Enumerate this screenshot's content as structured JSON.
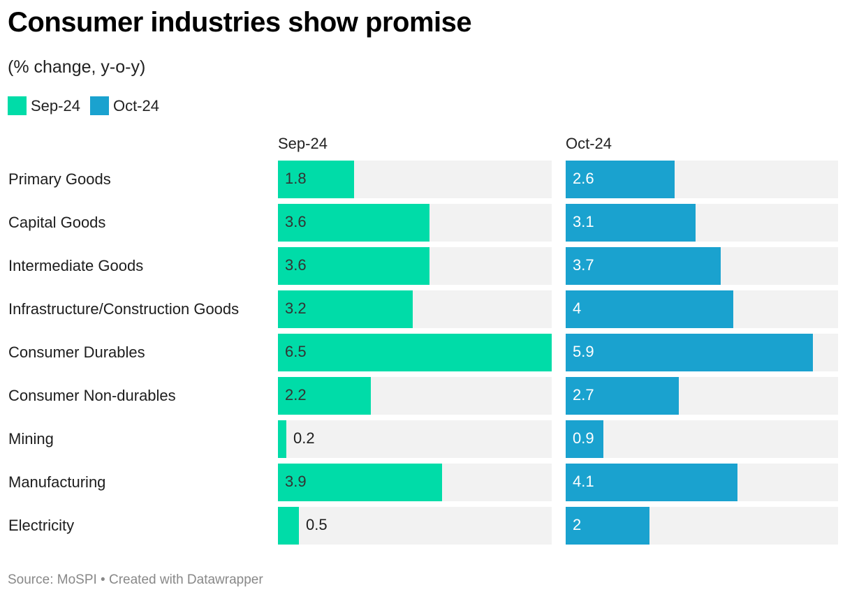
{
  "header": {
    "title": "Consumer industries show promise",
    "subtitle": "(% change, y-o-y)"
  },
  "legend": [
    {
      "label": "Sep-24",
      "color": "#00dca8"
    },
    {
      "label": "Oct-24",
      "color": "#1aa2cf"
    }
  ],
  "footer": {
    "source": "Source: MoSPI • Created with Datawrapper"
  },
  "chart_data": {
    "type": "bar",
    "orientation": "horizontal",
    "layout": "split-bars",
    "title": "Consumer industries show promise",
    "subtitle": "(% change, y-o-y)",
    "xlabel": "",
    "ylabel": "",
    "xlim": [
      0,
      6.5
    ],
    "grid": false,
    "legend_position": "top-left",
    "categories": [
      "Primary Goods",
      "Capital Goods",
      "Intermediate Goods",
      "Infrastructure/Construction Goods",
      "Consumer Durables",
      "Consumer Non-durables",
      "Mining",
      "Manufacturing",
      "Electricity"
    ],
    "series": [
      {
        "name": "Sep-24",
        "color": "#00dca8",
        "label_color": "#333333",
        "values": [
          1.8,
          3.6,
          3.6,
          3.2,
          6.5,
          2.2,
          0.2,
          3.9,
          0.5
        ]
      },
      {
        "name": "Oct-24",
        "color": "#1aa2cf",
        "label_color": "#ffffff",
        "values": [
          2.6,
          3.1,
          3.7,
          4,
          5.9,
          2.7,
          0.9,
          4.1,
          2
        ]
      }
    ],
    "source": "Source: MoSPI • Created with Datawrapper"
  }
}
